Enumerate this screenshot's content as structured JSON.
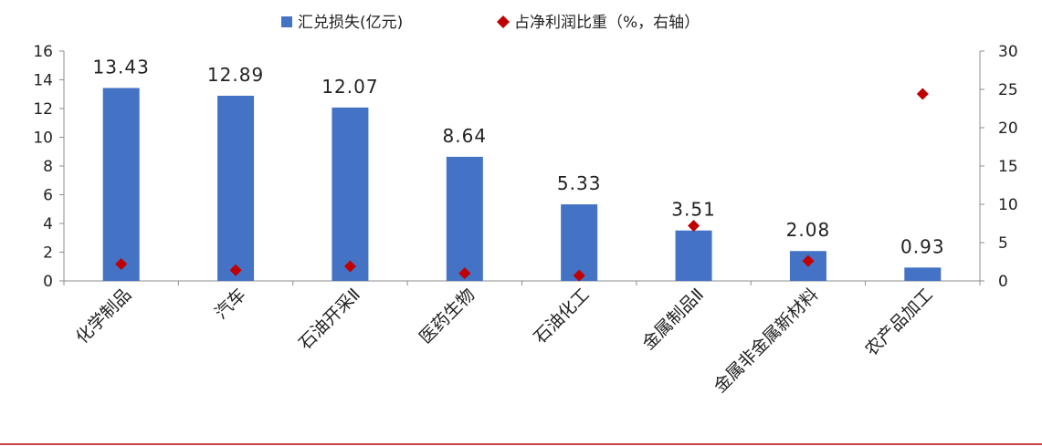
{
  "chart_data": {
    "type": "bar",
    "categories": [
      "化学制品",
      "汽车",
      "石油开采Ⅱ",
      "医药生物",
      "石油化工",
      "金属制品Ⅱ",
      "金属非金属新材料",
      "农产品加工"
    ],
    "series": [
      {
        "name": "汇兑损失(亿元)",
        "type": "bar",
        "axis": "left",
        "color": "#4472C4",
        "values": [
          13.43,
          12.89,
          12.07,
          8.64,
          5.33,
          3.51,
          2.08,
          0.93
        ],
        "labels": [
          "13.43",
          "12.89",
          "12.07",
          "8.64",
          "5.33",
          "3.51",
          "2.08",
          "0.93"
        ]
      },
      {
        "name": "占净利润比重（%，右轴）",
        "type": "scatter",
        "axis": "right",
        "color": "#C00000",
        "values": [
          2.2,
          1.4,
          1.9,
          1.0,
          0.7,
          7.2,
          2.6,
          24.4
        ]
      }
    ],
    "ylim": [
      0,
      16
    ],
    "y_ticks": [
      "0",
      "2",
      "4",
      "6",
      "8",
      "10",
      "12",
      "14",
      "16"
    ],
    "y2lim": [
      0,
      30
    ],
    "y2_ticks": [
      "0",
      "5",
      "10",
      "15",
      "20",
      "25",
      "30"
    ],
    "legend_position": "top-center",
    "grid": false,
    "bottom_rule_color": "#C00000"
  }
}
